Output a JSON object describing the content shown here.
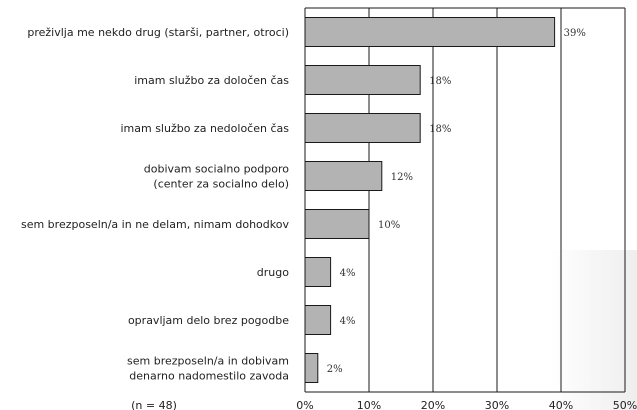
{
  "chart_data": {
    "type": "bar",
    "orientation": "horizontal",
    "categories": [
      [
        "preživlja me nekdo drug (starši, partner, otroci)"
      ],
      [
        "imam službo za določen čas"
      ],
      [
        "imam službo za nedoločen čas"
      ],
      [
        "dobivam socialno podporo",
        "(center za socialno delo)"
      ],
      [
        "sem brezposeln/a in ne delam, nimam dohodkov"
      ],
      [
        "drugo"
      ],
      [
        "opravljam delo brez pogodbe"
      ],
      [
        "sem brezposeln/a in dobivam",
        "denarno nadomestilo zavoda"
      ]
    ],
    "values": [
      39,
      18,
      18,
      12,
      10,
      4,
      4,
      2
    ],
    "value_labels": [
      "39%",
      "18%",
      "18%",
      "12%",
      "10%",
      "4%",
      "4%",
      "2%"
    ],
    "xlim": [
      0,
      50
    ],
    "xticks": [
      0,
      10,
      20,
      30,
      40,
      50
    ],
    "xtick_labels": [
      "0%",
      "10%",
      "20%",
      "30%",
      "40%",
      "50%"
    ],
    "grid": true,
    "note": "(n = 48)",
    "colors": {
      "bar_fill": "#b3b3b3",
      "bar_stroke": "#1a1a1a",
      "grid": "#1a1a1a",
      "text": "#222222",
      "panel_shade": "#eeeeee"
    }
  }
}
